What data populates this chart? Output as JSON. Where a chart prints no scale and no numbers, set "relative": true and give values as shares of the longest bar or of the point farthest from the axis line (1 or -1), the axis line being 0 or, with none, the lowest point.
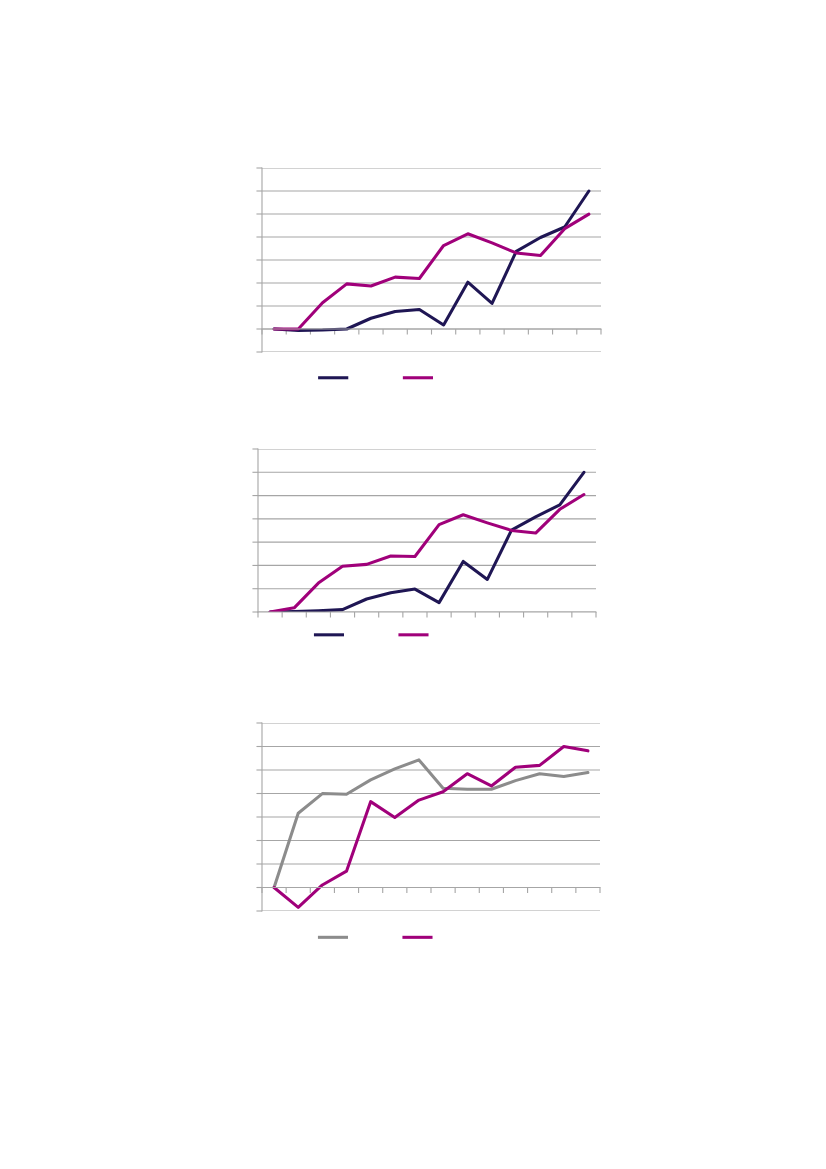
{
  "chart_data": [
    {
      "type": "line",
      "relative": true,
      "grid": "y",
      "categories": [
        null,
        null,
        null,
        null,
        null,
        null,
        null,
        null,
        null,
        null,
        null,
        null,
        null,
        null
      ],
      "series": [
        {
          "color": "#1f1654",
          "values": [
            0,
            -0.01,
            -0.007,
            0,
            0.078,
            0.127,
            0.141,
            0.029,
            0.339,
            0.185,
            0.563,
            0.663,
            0.739,
            1.0
          ]
        },
        {
          "color": "#a0007a",
          "values": [
            0,
            0,
            0.19,
            0.327,
            0.312,
            0.376,
            0.366,
            0.605,
            0.69,
            0.624,
            0.551,
            0.532,
            0.727,
            0.832
          ]
        }
      ]
    },
    {
      "type": "line",
      "relative": true,
      "grid": "y",
      "categories": [
        null,
        null,
        null,
        null,
        null,
        null,
        null,
        null,
        null,
        null,
        null,
        null,
        null,
        null
      ],
      "series": [
        {
          "color": "#1f1654",
          "values": [
            0,
            0.004,
            0.009,
            0.017,
            0.093,
            0.138,
            0.164,
            0.067,
            0.362,
            0.233,
            0.586,
            0.681,
            0.767,
            1.0
          ]
        },
        {
          "color": "#a0007a",
          "values": [
            0,
            0.03,
            0.207,
            0.328,
            0.341,
            0.401,
            0.397,
            0.625,
            0.696,
            0.638,
            0.584,
            0.565,
            0.735,
            0.841
          ]
        }
      ]
    },
    {
      "type": "line",
      "relative": true,
      "grid": "y",
      "categories": [
        null,
        null,
        null,
        null,
        null,
        null,
        null,
        null,
        null,
        null,
        null,
        null,
        null,
        null
      ],
      "series": [
        {
          "color": "#8c8c8c",
          "values": [
            0,
            0.527,
            0.666,
            0.661,
            0.763,
            0.841,
            0.905,
            0.704,
            0.697,
            0.697,
            0.758,
            0.807,
            0.787,
            0.815
          ]
        },
        {
          "color": "#a0007a",
          "values": [
            0,
            -0.141,
            0.018,
            0.116,
            0.609,
            0.496,
            0.62,
            0.679,
            0.807,
            0.72,
            0.853,
            0.866,
            1.0,
            0.969
          ]
        }
      ]
    }
  ]
}
